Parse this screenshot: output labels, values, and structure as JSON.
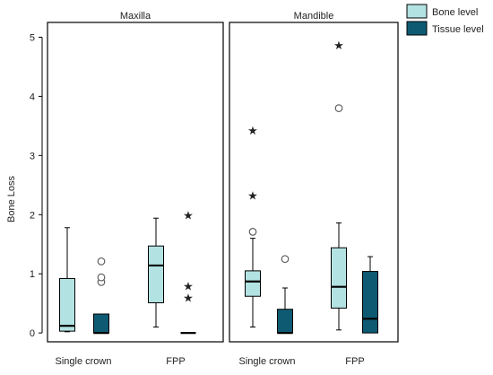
{
  "chart_data": {
    "type": "boxplot",
    "ylabel": "Bone Loss",
    "ylim": [
      -0.15,
      5.25
    ],
    "y_ticks": [
      0,
      1,
      2,
      3,
      4,
      5
    ],
    "legend": {
      "placement": "top-right",
      "entries": [
        {
          "name": "Bone level",
          "color": "#b3e2e2"
        },
        {
          "name": "Tissue level",
          "color": "#0f5a73"
        }
      ]
    },
    "panels": [
      {
        "title": "Maxilla",
        "categories": [
          "Single crown",
          "FPP"
        ],
        "boxes": [
          {
            "category": "Single crown",
            "series": "Bone level",
            "min": 0.02,
            "q1": 0.03,
            "median": 0.12,
            "q3": 0.92,
            "max": 1.78,
            "circles": [],
            "stars": []
          },
          {
            "category": "Single crown",
            "series": "Tissue level",
            "min": 0.0,
            "q1": 0.0,
            "median": 0.0,
            "q3": 0.32,
            "max": 0.32,
            "circles": [
              0.86,
              0.94,
              1.21
            ],
            "stars": []
          },
          {
            "category": "FPP",
            "series": "Bone level",
            "min": 0.1,
            "q1": 0.51,
            "median": 1.14,
            "q3": 1.47,
            "max": 1.94,
            "circles": [],
            "stars": []
          },
          {
            "category": "FPP",
            "series": "Tissue level",
            "min": 0.0,
            "q1": 0.0,
            "median": 0.0,
            "q3": 0.0,
            "max": 0.0,
            "circles": [],
            "stars": [
              0.6,
              0.8,
              2.0
            ]
          }
        ]
      },
      {
        "title": "Mandible",
        "categories": [
          "Single crown",
          "FPP"
        ],
        "boxes": [
          {
            "category": "Single crown",
            "series": "Bone level",
            "min": 0.1,
            "q1": 0.62,
            "median": 0.87,
            "q3": 1.05,
            "max": 1.6,
            "circles": [
              1.71
            ],
            "stars": [
              2.33,
              3.43
            ]
          },
          {
            "category": "Single crown",
            "series": "Tissue level",
            "min": 0.0,
            "q1": 0.0,
            "median": 0.0,
            "q3": 0.4,
            "max": 0.76,
            "circles": [
              1.25
            ],
            "stars": []
          },
          {
            "category": "FPP",
            "series": "Bone level",
            "min": 0.05,
            "q1": 0.42,
            "median": 0.78,
            "q3": 1.44,
            "max": 1.86,
            "circles": [
              3.8
            ],
            "stars": [
              4.87
            ]
          },
          {
            "category": "FPP",
            "series": "Tissue level",
            "min": 0.0,
            "q1": 0.0,
            "median": 0.24,
            "q3": 1.04,
            "max": 1.29,
            "circles": [],
            "stars": []
          }
        ]
      }
    ]
  }
}
